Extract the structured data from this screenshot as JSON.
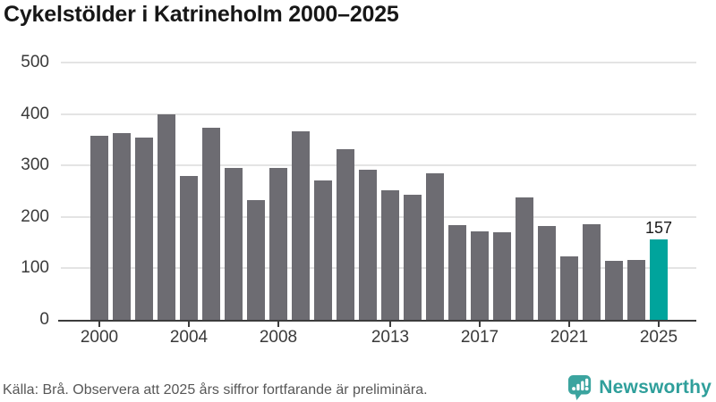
{
  "title": "Cykelstölder i Katrineholm 2000–2025",
  "chart_data": {
    "type": "bar",
    "title": "Cykelstölder i Katrineholm 2000–2025",
    "xlabel": "",
    "ylabel": "",
    "categories": [
      2000,
      2001,
      2002,
      2003,
      2004,
      2005,
      2006,
      2007,
      2008,
      2009,
      2010,
      2011,
      2012,
      2013,
      2014,
      2015,
      2016,
      2017,
      2018,
      2019,
      2020,
      2021,
      2022,
      2023,
      2024,
      2025
    ],
    "values": [
      357,
      362,
      354,
      400,
      279,
      374,
      295,
      233,
      295,
      366,
      270,
      332,
      292,
      252,
      243,
      284,
      184,
      172,
      170,
      237,
      183,
      124,
      186,
      115,
      116,
      157
    ],
    "ylim": [
      0,
      500
    ],
    "yticks": [
      0,
      100,
      200,
      300,
      400,
      500
    ],
    "xticks": [
      2000,
      2004,
      2008,
      2013,
      2017,
      2021,
      2025
    ],
    "grid": true,
    "legend_position": "none",
    "highlight_index": 25,
    "highlight_value_label": "157",
    "bar_color": "#6d6c72",
    "highlight_color": "#00a49c"
  },
  "footer": {
    "source_text": "Källa: Brå. Observera att 2025 års siffror fortfarande är preliminära.",
    "brand": "Newsworthy"
  },
  "colors": {
    "accent_teal": "#00a49c",
    "bar_gray": "#6d6c72",
    "brand_teal": "#2f9f9b",
    "grid": "#e4e4e4",
    "axis": "#3c3c3c"
  }
}
